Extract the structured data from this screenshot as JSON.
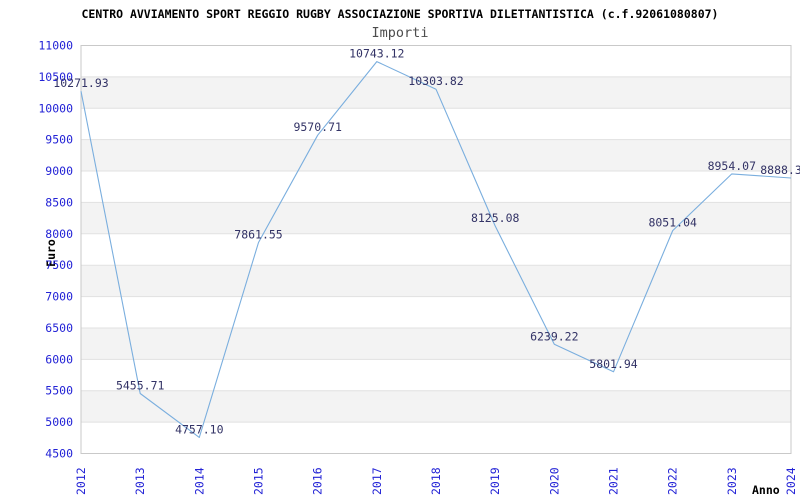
{
  "header": {
    "title": "CENTRO AVVIAMENTO SPORT REGGIO RUGBY ASSOCIAZIONE SPORTIVA DILETTANTISTICA (c.f.92061080807)",
    "subtitle": "Importi"
  },
  "colors": {
    "title_black": "#000000",
    "subtitle_gray": "#4d4d4d",
    "axis_tick_blue": "#2323d6",
    "point_label_navy": "#333366",
    "line_blue": "#7aaede",
    "stripe_gray": "#f3f3f3",
    "grid_gray": "#e1e1e1",
    "frame_gray": "#c9c9c9",
    "background": "#ffffff"
  },
  "chart_data": {
    "type": "line",
    "title": "Importi",
    "xlabel": "Anno",
    "ylabel": "Euro",
    "categories": [
      "2012",
      "2013",
      "2014",
      "2015",
      "2016",
      "2017",
      "2018",
      "2019",
      "2020",
      "2021",
      "2022",
      "2023",
      "2024"
    ],
    "series": [
      {
        "name": "Importi",
        "values": [
          10271.93,
          5455.71,
          4757.1,
          7861.55,
          9570.71,
          10743.12,
          10303.82,
          8125.08,
          6239.22,
          5801.94,
          8051.04,
          8954.07,
          8888.3
        ]
      }
    ],
    "point_labels": [
      "10271.93",
      "5455.71",
      "4757.10",
      "7861.55",
      "9570.71",
      "10743.12",
      "10303.82",
      "8125.08",
      "6239.22",
      "5801.94",
      "8051.04",
      "8954.07",
      "8888.3"
    ],
    "point_label_dx": [
      0,
      0,
      0,
      0,
      0,
      0,
      0,
      0,
      0,
      0,
      0,
      0,
      -10
    ],
    "point_label_clipped": [
      false,
      false,
      false,
      false,
      false,
      false,
      false,
      false,
      false,
      false,
      false,
      false,
      true
    ],
    "ylim": [
      4500,
      11000
    ],
    "ytick_step": 500,
    "ytick_labels": [
      "4500",
      "5000",
      "5500",
      "6000",
      "6500",
      "7000",
      "7500",
      "8000",
      "8500",
      "9000",
      "9500",
      "10000",
      "10500",
      "11000"
    ],
    "grid": true,
    "background_bands": "alternating gray/white horizontal stripes every 500 units",
    "legend_position": "none",
    "markers": "none"
  }
}
